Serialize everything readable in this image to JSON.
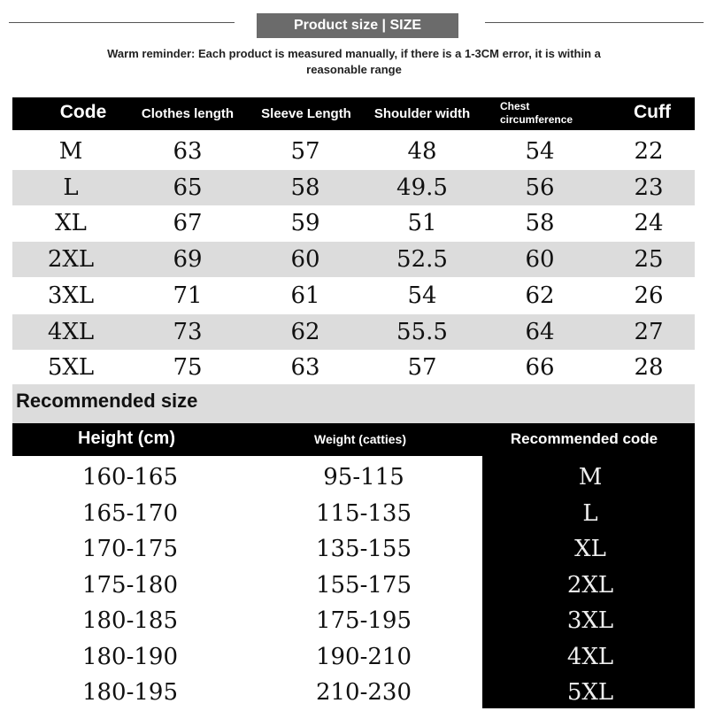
{
  "header": {
    "title": "Product size | SIZE",
    "reminder": "Warm reminder: Each product is measured manually, if there is a 1-3CM error, it is within a reasonable range"
  },
  "size_table": {
    "columns": [
      "Code",
      "Clothes length",
      "Sleeve Length",
      "Shoulder width",
      "Chest circumference",
      "Cuff"
    ],
    "rows": [
      [
        "M",
        "63",
        "57",
        "48",
        "54",
        "22"
      ],
      [
        "L",
        "65",
        "58",
        "49.5",
        "56",
        "23"
      ],
      [
        "XL",
        "67",
        "59",
        "51",
        "58",
        "24"
      ],
      [
        "2XL",
        "69",
        "60",
        "52.5",
        "60",
        "25"
      ],
      [
        "3XL",
        "71",
        "61",
        "54",
        "62",
        "26"
      ],
      [
        "4XL",
        "73",
        "62",
        "55.5",
        "64",
        "27"
      ],
      [
        "5XL",
        "75",
        "63",
        "57",
        "66",
        "28"
      ]
    ]
  },
  "recommended": {
    "title": "Recommended size",
    "columns": [
      "Height (cm)",
      "Weight (catties)",
      "Recommended code"
    ],
    "rows": [
      [
        "160-165",
        "95-115",
        "M"
      ],
      [
        "165-170",
        "115-135",
        "L"
      ],
      [
        "170-175",
        "135-155",
        "XL"
      ],
      [
        "175-180",
        "155-175",
        "2XL"
      ],
      [
        "180-185",
        "175-195",
        "3XL"
      ],
      [
        "180-190",
        "190-210",
        "4XL"
      ],
      [
        "180-195",
        "210-230",
        "5XL"
      ]
    ]
  },
  "colors": {
    "title_bg": "#6b6b6b",
    "header_bg": "#000000",
    "stripe": "#dcdcdc"
  }
}
